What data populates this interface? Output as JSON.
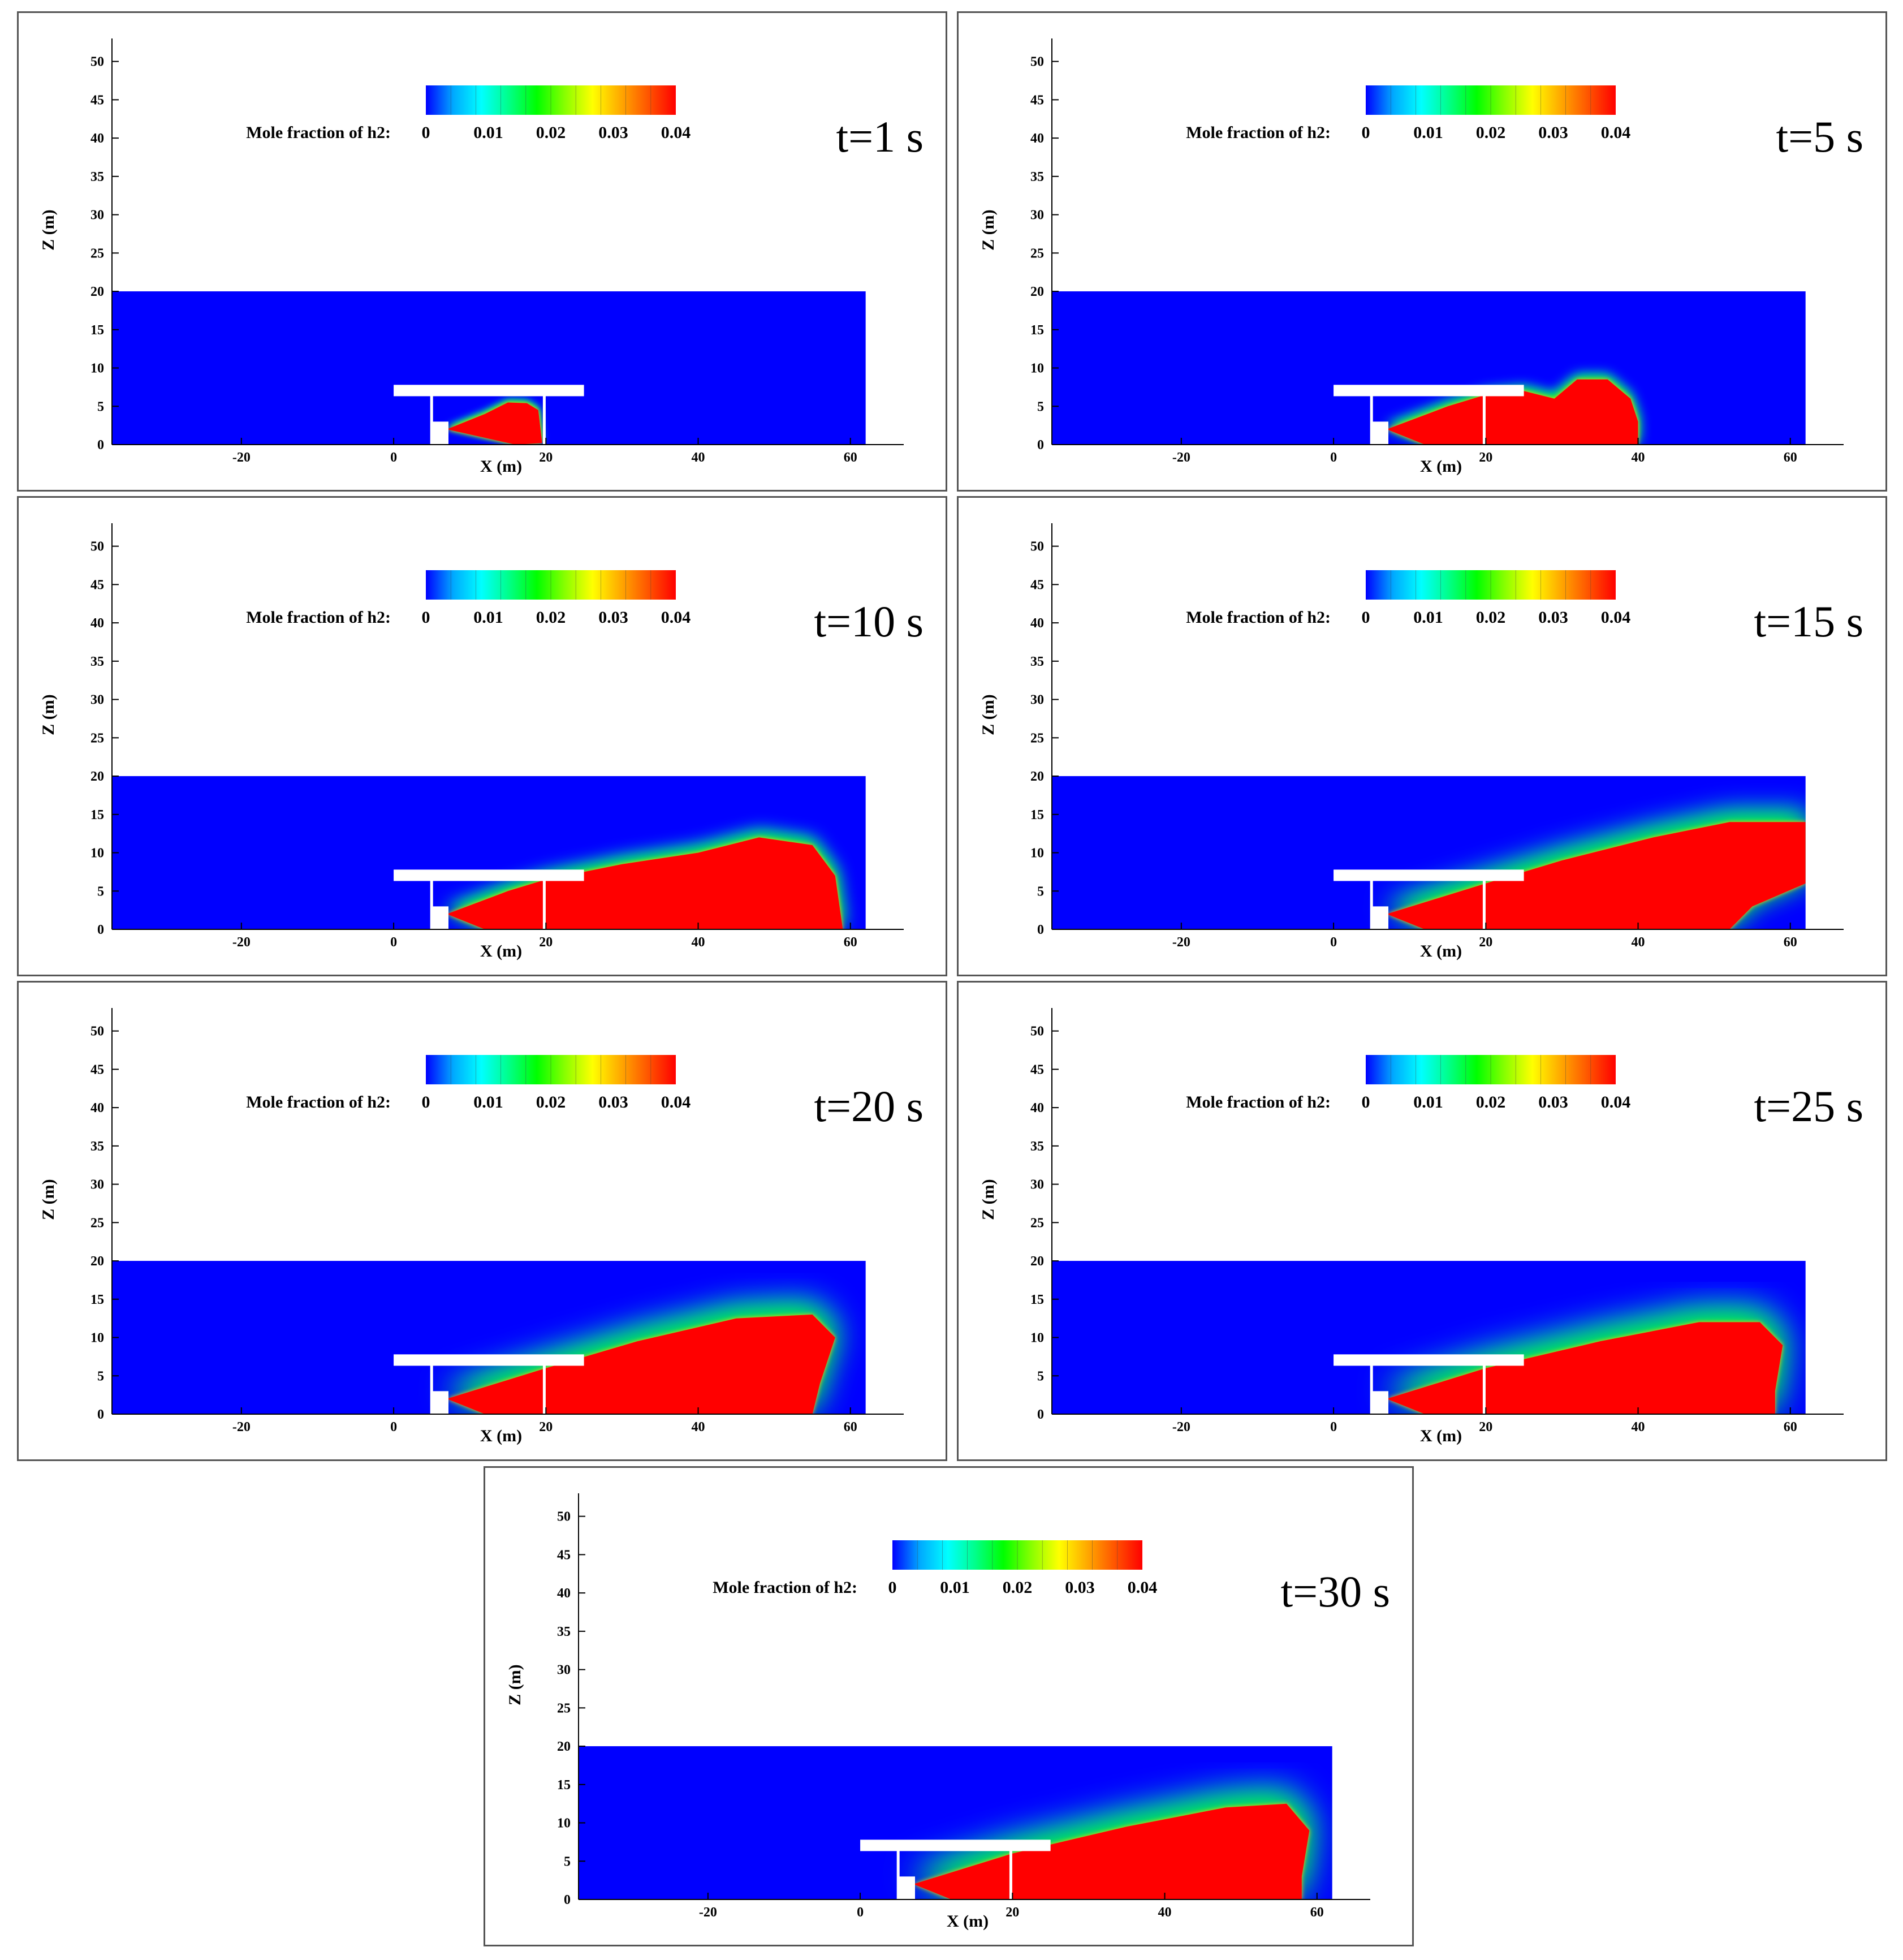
{
  "colorbar": {
    "colors": [
      "#0000ff",
      "#00aaff",
      "#00ffff",
      "#00ff88",
      "#00ff00",
      "#88ff00",
      "#ffff00",
      "#ffaa00",
      "#ff5500",
      "#ff0000"
    ]
  },
  "plume_colors": {
    "background": "#0000ff",
    "core": "#ff0000"
  },
  "chart_data": [
    {
      "type": "heatmap",
      "title": "t=1 s",
      "xlabel": "X (m)",
      "ylabel": "Z (m)",
      "xlim": [
        -37,
        67
      ],
      "ylim": [
        0,
        53
      ],
      "xticks": [
        "-20",
        "0",
        "20",
        "40",
        "60"
      ],
      "yticks": [
        "0",
        "5",
        "10",
        "15",
        "20",
        "25",
        "30",
        "35",
        "40",
        "45",
        "50"
      ],
      "legend_label": "Mole fraction of h2:",
      "legend_ticks": [
        "0",
        "0.01",
        "0.02",
        "0.03",
        "0.04"
      ],
      "domain_x": [
        -37,
        62
      ],
      "domain_z": [
        0,
        20
      ],
      "plume": [
        [
          7,
          2
        ],
        [
          12,
          4
        ],
        [
          15,
          5.5
        ],
        [
          17.5,
          5.4
        ],
        [
          19,
          4.5
        ],
        [
          19.5,
          0.2
        ],
        [
          16,
          0
        ]
      ],
      "fringe": 3
    },
    {
      "type": "heatmap",
      "title": "t=5 s",
      "xlabel": "X (m)",
      "ylabel": "Z (m)",
      "xlim": [
        -37,
        67
      ],
      "ylim": [
        0,
        53
      ],
      "xticks": [
        "-20",
        "0",
        "20",
        "40",
        "60"
      ],
      "yticks": [
        "0",
        "5",
        "10",
        "15",
        "20",
        "25",
        "30",
        "35",
        "40",
        "45",
        "50"
      ],
      "legend_label": "Mole fraction of h2:",
      "legend_ticks": [
        "0",
        "0.01",
        "0.02",
        "0.03",
        "0.04"
      ],
      "domain_x": [
        -37,
        62
      ],
      "domain_z": [
        0,
        20
      ],
      "plume": [
        [
          7,
          2
        ],
        [
          15,
          5
        ],
        [
          20,
          6.5
        ],
        [
          25,
          7
        ],
        [
          29,
          6
        ],
        [
          32,
          8.5
        ],
        [
          36,
          8.5
        ],
        [
          39,
          6
        ],
        [
          40,
          3
        ],
        [
          40,
          0
        ],
        [
          12,
          0
        ]
      ],
      "fringe": 5
    },
    {
      "type": "heatmap",
      "title": "t=10 s",
      "xlabel": "X (m)",
      "ylabel": "Z (m)",
      "xlim": [
        -37,
        67
      ],
      "ylim": [
        0,
        53
      ],
      "xticks": [
        "-20",
        "0",
        "20",
        "40",
        "60"
      ],
      "yticks": [
        "0",
        "5",
        "10",
        "15",
        "20",
        "25",
        "30",
        "35",
        "40",
        "45",
        "50"
      ],
      "legend_label": "Mole fraction of h2:",
      "legend_ticks": [
        "0",
        "0.01",
        "0.02",
        "0.03",
        "0.04"
      ],
      "domain_x": [
        -37,
        62
      ],
      "domain_z": [
        0,
        20
      ],
      "plume": [
        [
          7,
          2
        ],
        [
          15,
          5
        ],
        [
          20,
          6.5
        ],
        [
          30,
          8.5
        ],
        [
          40,
          10
        ],
        [
          48,
          12
        ],
        [
          55,
          11
        ],
        [
          58,
          7
        ],
        [
          59,
          0
        ],
        [
          12,
          0
        ]
      ],
      "fringe": 7
    },
    {
      "type": "heatmap",
      "title": "t=15 s",
      "xlabel": "X (m)",
      "ylabel": "Z (m)",
      "xlim": [
        -37,
        67
      ],
      "ylim": [
        0,
        53
      ],
      "xticks": [
        "-20",
        "0",
        "20",
        "40",
        "60"
      ],
      "yticks": [
        "0",
        "5",
        "10",
        "15",
        "20",
        "25",
        "30",
        "35",
        "40",
        "45",
        "50"
      ],
      "legend_label": "Mole fraction of h2:",
      "legend_ticks": [
        "0",
        "0.01",
        "0.02",
        "0.03",
        "0.04"
      ],
      "domain_x": [
        -37,
        62
      ],
      "domain_z": [
        0,
        20
      ],
      "plume": [
        [
          7,
          2
        ],
        [
          20,
          6
        ],
        [
          30,
          9
        ],
        [
          42,
          12
        ],
        [
          52,
          14
        ],
        [
          62,
          14
        ],
        [
          62,
          6
        ],
        [
          55,
          3
        ],
        [
          52,
          0
        ],
        [
          12,
          0
        ]
      ],
      "fringe": 11
    },
    {
      "type": "heatmap",
      "title": "t=20 s",
      "xlabel": "X (m)",
      "ylabel": "Z (m)",
      "xlim": [
        -37,
        67
      ],
      "ylim": [
        0,
        53
      ],
      "xticks": [
        "-20",
        "0",
        "20",
        "40",
        "60"
      ],
      "yticks": [
        "0",
        "5",
        "10",
        "15",
        "20",
        "25",
        "30",
        "35",
        "40",
        "45",
        "50"
      ],
      "legend_label": "Mole fraction of h2:",
      "legend_ticks": [
        "0",
        "0.01",
        "0.02",
        "0.03",
        "0.04"
      ],
      "domain_x": [
        -37,
        62
      ],
      "domain_z": [
        0,
        20
      ],
      "plume": [
        [
          7,
          2
        ],
        [
          20,
          6
        ],
        [
          32,
          9.5
        ],
        [
          45,
          12.5
        ],
        [
          55,
          13
        ],
        [
          58,
          10
        ],
        [
          56,
          4
        ],
        [
          55,
          0
        ],
        [
          12,
          0
        ]
      ],
      "fringe": 13
    },
    {
      "type": "heatmap",
      "title": "t=25 s",
      "xlabel": "X (m)",
      "ylabel": "Z (m)",
      "xlim": [
        -37,
        67
      ],
      "ylim": [
        0,
        53
      ],
      "xticks": [
        "-20",
        "0",
        "20",
        "40",
        "60"
      ],
      "yticks": [
        "0",
        "5",
        "10",
        "15",
        "20",
        "25",
        "30",
        "35",
        "40",
        "45",
        "50"
      ],
      "legend_label": "Mole fraction of h2:",
      "legend_ticks": [
        "0",
        "0.01",
        "0.02",
        "0.03",
        "0.04"
      ],
      "domain_x": [
        -37,
        62
      ],
      "domain_z": [
        0,
        20
      ],
      "plume": [
        [
          7,
          2
        ],
        [
          20,
          6
        ],
        [
          35,
          9.5
        ],
        [
          48,
          12
        ],
        [
          56,
          12
        ],
        [
          59,
          9
        ],
        [
          58,
          3
        ],
        [
          58,
          0
        ],
        [
          12,
          0
        ]
      ],
      "fringe": 14
    },
    {
      "type": "heatmap",
      "title": "t=30 s",
      "xlabel": "X (m)",
      "ylabel": "Z (m)",
      "xlim": [
        -37,
        67
      ],
      "ylim": [
        0,
        53
      ],
      "xticks": [
        "-20",
        "0",
        "20",
        "40",
        "60"
      ],
      "yticks": [
        "0",
        "5",
        "10",
        "15",
        "20",
        "25",
        "30",
        "35",
        "40",
        "45",
        "50"
      ],
      "legend_label": "Mole fraction of h2:",
      "legend_ticks": [
        "0",
        "0.01",
        "0.02",
        "0.03",
        "0.04"
      ],
      "domain_x": [
        -37,
        62
      ],
      "domain_z": [
        0,
        20
      ],
      "plume": [
        [
          7,
          2
        ],
        [
          20,
          6
        ],
        [
          35,
          9.5
        ],
        [
          48,
          12
        ],
        [
          56,
          12.5
        ],
        [
          59,
          9
        ],
        [
          58,
          3
        ],
        [
          58,
          0
        ],
        [
          12,
          0
        ]
      ],
      "fringe": 14
    }
  ]
}
